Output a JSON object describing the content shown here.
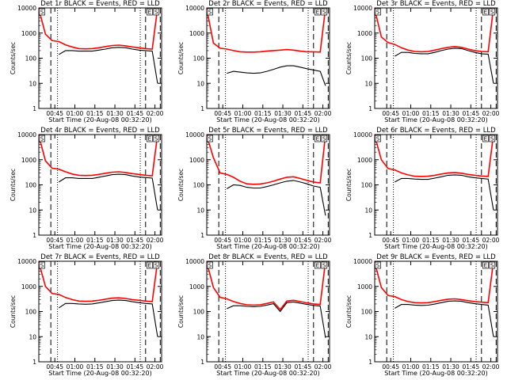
{
  "figure": {
    "xlabel": "Start Time (20-Aug-08 00:32:20)",
    "ylabel": "Counts/sec",
    "series_colors": {
      "events": "#000000",
      "lld": "#ff0000"
    },
    "x_ticks": [
      "00:45",
      "01:00",
      "01:15",
      "01:30",
      "01:45",
      "02:00"
    ],
    "y_ticks": [
      "1",
      "10",
      "100",
      "1000",
      "10000"
    ]
  },
  "chart_data": [
    {
      "type": "line",
      "title": "Det 1r BLACK = Events, RED = LLD",
      "x": [
        "00:33",
        "00:38",
        "00:43",
        "00:48",
        "00:53",
        "00:58",
        "01:03",
        "01:08",
        "01:13",
        "01:18",
        "01:23",
        "01:28",
        "01:33",
        "01:38",
        "01:43",
        "01:48",
        "01:53",
        "01:58",
        "02:02"
      ],
      "ylim": [
        1,
        10000
      ],
      "yscale": "log",
      "series": [
        {
          "name": "LLD",
          "color": "#ff0000",
          "values": [
            9000,
            900,
            500,
            460,
            340,
            280,
            240,
            235,
            240,
            260,
            290,
            320,
            330,
            310,
            280,
            260,
            240,
            230,
            10000
          ]
        },
        {
          "name": "Events",
          "color": "#000000",
          "values": [
            null,
            null,
            null,
            140,
            200,
            200,
            190,
            190,
            190,
            210,
            230,
            260,
            270,
            260,
            230,
            210,
            200,
            190,
            10
          ]
        }
      ],
      "markers": [
        "S",
        "E",
        "S"
      ]
    },
    {
      "type": "line",
      "title": "Det 2r BLACK = Events, RED = LLD",
      "x": [
        "00:33",
        "00:38",
        "00:43",
        "00:48",
        "00:53",
        "00:58",
        "01:03",
        "01:08",
        "01:13",
        "01:18",
        "01:23",
        "01:28",
        "01:33",
        "01:38",
        "01:43",
        "01:48",
        "01:53",
        "01:58",
        "02:02"
      ],
      "ylim": [
        1,
        10000
      ],
      "yscale": "log",
      "series": [
        {
          "name": "LLD",
          "color": "#ff0000",
          "values": [
            9000,
            400,
            250,
            230,
            200,
            180,
            175,
            175,
            180,
            190,
            200,
            210,
            220,
            210,
            190,
            180,
            180,
            175,
            10000
          ]
        },
        {
          "name": "Events",
          "color": "#000000",
          "values": [
            null,
            null,
            null,
            25,
            30,
            28,
            26,
            25,
            26,
            30,
            36,
            44,
            50,
            50,
            44,
            38,
            34,
            30,
            8
          ]
        }
      ],
      "markers": [
        "S",
        "E",
        "S"
      ]
    },
    {
      "type": "line",
      "title": "Det 3r BLACK = Events, RED = LLD",
      "x": [
        "00:33",
        "00:38",
        "00:43",
        "00:48",
        "00:53",
        "00:58",
        "01:03",
        "01:08",
        "01:13",
        "01:18",
        "01:23",
        "01:28",
        "01:33",
        "01:38",
        "01:43",
        "01:48",
        "01:53",
        "01:58",
        "02:02"
      ],
      "ylim": [
        1,
        10000
      ],
      "yscale": "log",
      "series": [
        {
          "name": "LLD",
          "color": "#ff0000",
          "values": [
            9000,
            700,
            420,
            350,
            260,
            210,
            185,
            180,
            185,
            210,
            240,
            270,
            290,
            270,
            230,
            200,
            185,
            180,
            10000
          ]
        },
        {
          "name": "Events",
          "color": "#000000",
          "values": [
            null,
            null,
            null,
            120,
            170,
            170,
            155,
            150,
            150,
            170,
            200,
            230,
            250,
            240,
            200,
            170,
            150,
            145,
            10
          ]
        }
      ],
      "markers": [
        "S",
        "E",
        "S"
      ]
    },
    {
      "type": "line",
      "title": "Det 4r BLACK = Events, RED = LLD",
      "x": [
        "00:33",
        "00:38",
        "00:43",
        "00:48",
        "00:53",
        "00:58",
        "01:03",
        "01:08",
        "01:13",
        "01:18",
        "01:23",
        "01:28",
        "01:33",
        "01:38",
        "01:43",
        "01:48",
        "01:53",
        "01:58",
        "02:02"
      ],
      "ylim": [
        1,
        10000
      ],
      "yscale": "log",
      "series": [
        {
          "name": "LLD",
          "color": "#ff0000",
          "values": [
            9000,
            900,
            460,
            420,
            330,
            270,
            240,
            235,
            240,
            260,
            290,
            320,
            330,
            310,
            280,
            260,
            240,
            230,
            10000
          ]
        },
        {
          "name": "Events",
          "color": "#000000",
          "values": [
            null,
            null,
            null,
            130,
            190,
            190,
            180,
            180,
            180,
            200,
            225,
            255,
            265,
            255,
            225,
            205,
            195,
            185,
            10
          ]
        }
      ],
      "markers": [
        "S",
        "E",
        "S"
      ]
    },
    {
      "type": "line",
      "title": "Det 5r BLACK = Events, RED = LLD",
      "x": [
        "00:33",
        "00:38",
        "00:43",
        "00:48",
        "00:53",
        "00:58",
        "01:03",
        "01:08",
        "01:13",
        "01:18",
        "01:23",
        "01:28",
        "01:33",
        "01:38",
        "01:43",
        "01:48",
        "01:53",
        "01:58",
        "02:02"
      ],
      "ylim": [
        1,
        10000
      ],
      "yscale": "log",
      "series": [
        {
          "name": "LLD",
          "color": "#ff0000",
          "values": [
            9000,
            1200,
            300,
            260,
            200,
            140,
            110,
            105,
            108,
            120,
            140,
            170,
            200,
            210,
            180,
            150,
            130,
            120,
            10000
          ]
        },
        {
          "name": "Events",
          "color": "#000000",
          "values": [
            null,
            null,
            null,
            70,
            100,
            95,
            80,
            75,
            75,
            85,
            100,
            120,
            140,
            150,
            130,
            110,
            90,
            80,
            6
          ]
        }
      ],
      "markers": [
        "S",
        "E",
        "S"
      ]
    },
    {
      "type": "line",
      "title": "Det 6r BLACK = Events, RED = LLD",
      "x": [
        "00:33",
        "00:38",
        "00:43",
        "00:48",
        "00:53",
        "00:58",
        "01:03",
        "01:08",
        "01:13",
        "01:18",
        "01:23",
        "01:28",
        "01:33",
        "01:38",
        "01:43",
        "01:48",
        "01:53",
        "01:58",
        "02:02"
      ],
      "ylim": [
        1,
        10000
      ],
      "yscale": "log",
      "series": [
        {
          "name": "LLD",
          "color": "#ff0000",
          "values": [
            9000,
            1000,
            450,
            390,
            300,
            250,
            220,
            215,
            220,
            240,
            270,
            300,
            310,
            290,
            260,
            240,
            225,
            215,
            10000
          ]
        },
        {
          "name": "Events",
          "color": "#000000",
          "values": [
            null,
            null,
            null,
            130,
            180,
            180,
            170,
            165,
            165,
            185,
            210,
            240,
            250,
            240,
            210,
            190,
            180,
            170,
            10
          ]
        }
      ],
      "markers": [
        "S",
        "E",
        "S"
      ]
    },
    {
      "type": "line",
      "title": "Det 7r BLACK = Events, RED = LLD",
      "x": [
        "00:33",
        "00:38",
        "00:43",
        "00:48",
        "00:53",
        "00:58",
        "01:03",
        "01:08",
        "01:13",
        "01:18",
        "01:23",
        "01:28",
        "01:33",
        "01:38",
        "01:43",
        "01:48",
        "01:53",
        "01:58",
        "02:02"
      ],
      "ylim": [
        1,
        10000
      ],
      "yscale": "log",
      "series": [
        {
          "name": "LLD",
          "color": "#ff0000",
          "values": [
            9000,
            1000,
            520,
            480,
            360,
            300,
            260,
            255,
            260,
            280,
            310,
            340,
            350,
            330,
            300,
            280,
            260,
            250,
            10000
          ]
        },
        {
          "name": "Events",
          "color": "#000000",
          "values": [
            null,
            null,
            null,
            140,
            210,
            210,
            200,
            195,
            200,
            220,
            245,
            275,
            285,
            275,
            245,
            225,
            210,
            200,
            10
          ]
        }
      ],
      "markers": [
        "S",
        "E",
        "S"
      ]
    },
    {
      "type": "line",
      "title": "Det 8r BLACK = Events, RED = LLD",
      "x": [
        "00:33",
        "00:38",
        "00:43",
        "00:48",
        "00:53",
        "00:58",
        "01:03",
        "01:08",
        "01:13",
        "01:18",
        "01:23",
        "01:28",
        "01:33",
        "01:38",
        "01:43",
        "01:48",
        "01:53",
        "01:58",
        "02:02"
      ],
      "ylim": [
        1,
        10000
      ],
      "yscale": "log",
      "series": [
        {
          "name": "LLD",
          "color": "#ff0000",
          "values": [
            9000,
            900,
            370,
            320,
            250,
            210,
            185,
            180,
            185,
            210,
            240,
            120,
            260,
            280,
            250,
            220,
            200,
            190,
            10000
          ]
        },
        {
          "name": "Events",
          "color": "#000000",
          "values": [
            null,
            null,
            null,
            130,
            170,
            170,
            160,
            155,
            160,
            180,
            205,
            100,
            225,
            240,
            215,
            190,
            175,
            165,
            9
          ]
        }
      ],
      "markers": [
        "S",
        "E",
        "S"
      ]
    },
    {
      "type": "line",
      "title": "Det 9r BLACK = Events, RED = LLD",
      "x": [
        "00:33",
        "00:38",
        "00:43",
        "00:48",
        "00:53",
        "00:58",
        "01:03",
        "01:08",
        "01:13",
        "01:18",
        "01:23",
        "01:28",
        "01:33",
        "01:38",
        "01:43",
        "01:48",
        "01:53",
        "01:58",
        "02:02"
      ],
      "ylim": [
        1,
        10000
      ],
      "yscale": "log",
      "series": [
        {
          "name": "LLD",
          "color": "#ff0000",
          "values": [
            9000,
            900,
            440,
            390,
            300,
            250,
            225,
            220,
            225,
            250,
            280,
            310,
            320,
            300,
            270,
            250,
            235,
            225,
            10000
          ]
        },
        {
          "name": "Events",
          "color": "#000000",
          "values": [
            null,
            null,
            null,
            135,
            190,
            190,
            180,
            175,
            178,
            198,
            225,
            255,
            265,
            255,
            225,
            205,
            190,
            180,
            10
          ]
        }
      ],
      "markers": [
        "S",
        "E",
        "S"
      ]
    }
  ]
}
